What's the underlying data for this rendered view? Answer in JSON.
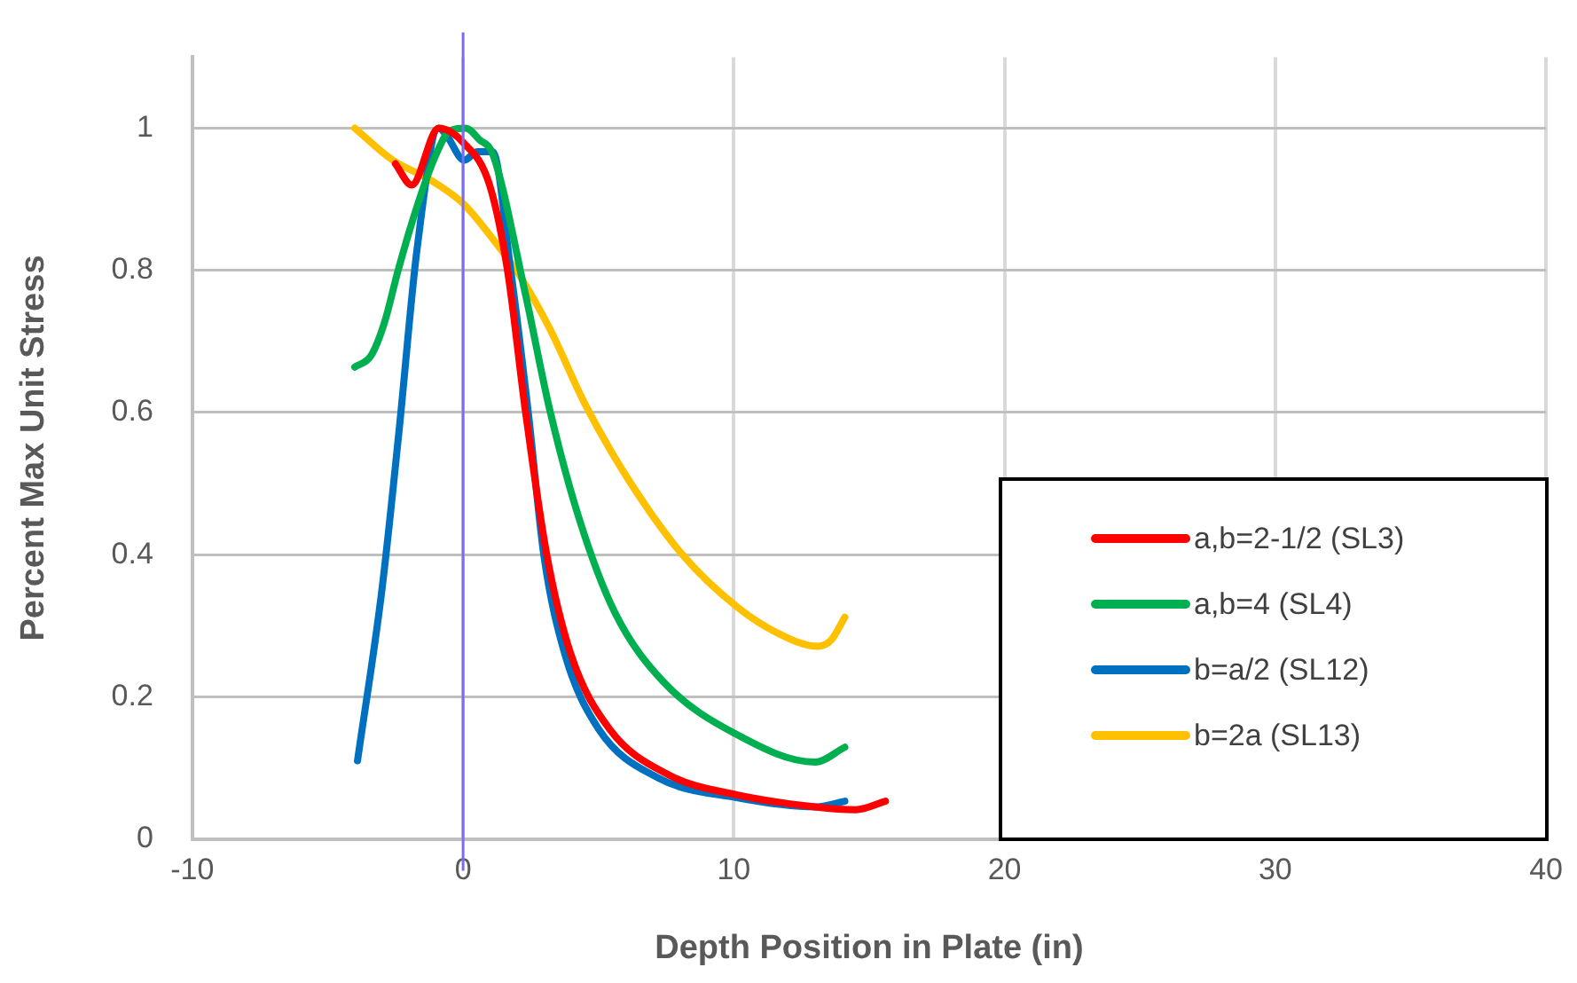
{
  "chart_data": {
    "type": "line",
    "xlabel": "Depth Position in Plate (in)",
    "ylabel": "Percent Max Unit Stress",
    "xlim": [
      -10,
      40
    ],
    "xticks": [
      -10,
      0,
      10,
      20,
      30,
      40
    ],
    "ylim": [
      0,
      1.1
    ],
    "yticks": [
      0,
      0.2,
      0.4,
      0.6,
      0.8,
      1
    ],
    "grid": true,
    "legend": "bottom right",
    "marker": "none",
    "line_style": "solid",
    "ref_lines": [
      {
        "axis": "x",
        "value": 0,
        "color": "#7b6cf6"
      }
    ],
    "series": [
      {
        "name": "a,b=2-1/2 (SL3)",
        "color": "#ff0000",
        "x": [
          -2.5,
          -1.9,
          -0.9,
          0,
          0.98,
          1.64,
          2.31,
          3.09,
          3.98,
          5.4,
          7.6,
          10.1,
          13,
          14.5,
          15.6
        ],
        "values": [
          0.95,
          0.92,
          1.0,
          0.98,
          0.92,
          0.8,
          0.6,
          0.4,
          0.26,
          0.155,
          0.09,
          0.062,
          0.045,
          0.041,
          0.053
        ]
      },
      {
        "name": "a,b=4 (SL4)",
        "color": "#00b050",
        "x": [
          -4,
          -3.4,
          -2.9,
          -2.4,
          -1.7,
          -1,
          -0.5,
          0.1,
          0.6,
          1.1,
          2.3,
          3.2,
          4.3,
          5.6,
          7.4,
          10.1,
          13,
          14.1
        ],
        "values": [
          0.664,
          0.68,
          0.727,
          0.8,
          0.89,
          0.963,
          0.996,
          1.0,
          0.984,
          0.963,
          0.767,
          0.604,
          0.449,
          0.319,
          0.221,
          0.147,
          0.108,
          0.129
        ]
      },
      {
        "name": "b=a/2 (SL12)",
        "color": "#0070c0",
        "x": [
          -3.9,
          -3,
          -2.35,
          -1.7,
          -0.9,
          -0.58,
          0.04,
          0.53,
          1.09,
          1.76,
          2.42,
          2.98,
          3.76,
          5,
          7.2,
          10.1,
          13,
          14.1
        ],
        "values": [
          0.11,
          0.35,
          0.58,
          0.83,
          1.0,
          0.988,
          0.955,
          0.967,
          0.967,
          0.8,
          0.596,
          0.4,
          0.26,
          0.155,
          0.086,
          0.058,
          0.045,
          0.053
        ]
      },
      {
        "name": "b=2a (SL13)",
        "color": "#ffc000",
        "x": [
          -4,
          -2.6,
          -1.2,
          0,
          1,
          2.1,
          3.2,
          4.5,
          6.1,
          8.1,
          10.1,
          11.6,
          13.1,
          13.6,
          14.1
        ],
        "values": [
          1.0,
          0.955,
          0.927,
          0.894,
          0.849,
          0.792,
          0.718,
          0.612,
          0.506,
          0.4,
          0.327,
          0.29,
          0.271,
          0.28,
          0.312
        ]
      }
    ]
  }
}
